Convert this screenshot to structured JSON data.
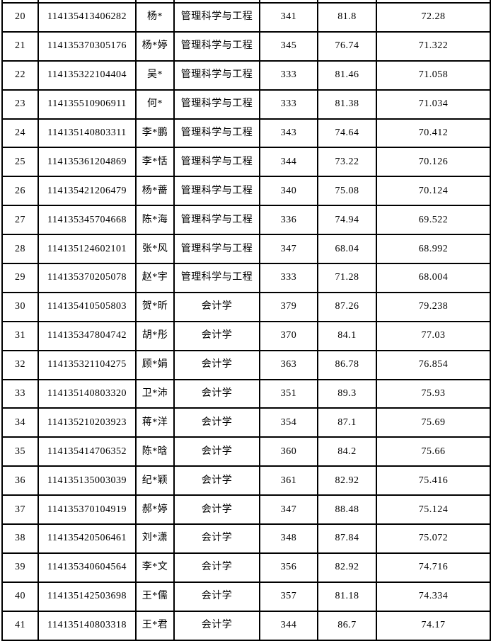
{
  "colors": {
    "background": "#ffffff",
    "border": "#000000",
    "text": "#000000"
  },
  "table": {
    "cell_keys": [
      "no",
      "id",
      "name",
      "major",
      "score1",
      "score2",
      "total"
    ],
    "rows": [
      {
        "no": "20",
        "id": "114135413406282",
        "name": "杨*",
        "major": "管理科学与工程",
        "score1": "341",
        "score2": "81.8",
        "total": "72.28"
      },
      {
        "no": "21",
        "id": "114135370305176",
        "name": "杨*婷",
        "major": "管理科学与工程",
        "score1": "345",
        "score2": "76.74",
        "total": "71.322"
      },
      {
        "no": "22",
        "id": "114135322104404",
        "name": "吴*",
        "major": "管理科学与工程",
        "score1": "333",
        "score2": "81.46",
        "total": "71.058"
      },
      {
        "no": "23",
        "id": "114135510906911",
        "name": "何*",
        "major": "管理科学与工程",
        "score1": "333",
        "score2": "81.38",
        "total": "71.034"
      },
      {
        "no": "24",
        "id": "114135140803311",
        "name": "李*鹏",
        "major": "管理科学与工程",
        "score1": "343",
        "score2": "74.64",
        "total": "70.412"
      },
      {
        "no": "25",
        "id": "114135361204869",
        "name": "李*恬",
        "major": "管理科学与工程",
        "score1": "344",
        "score2": "73.22",
        "total": "70.126"
      },
      {
        "no": "26",
        "id": "114135421206479",
        "name": "杨*蔷",
        "major": "管理科学与工程",
        "score1": "340",
        "score2": "75.08",
        "total": "70.124"
      },
      {
        "no": "27",
        "id": "114135345704668",
        "name": "陈*海",
        "major": "管理科学与工程",
        "score1": "336",
        "score2": "74.94",
        "total": "69.522"
      },
      {
        "no": "28",
        "id": "114135124602101",
        "name": "张*风",
        "major": "管理科学与工程",
        "score1": "347",
        "score2": "68.04",
        "total": "68.992"
      },
      {
        "no": "29",
        "id": "114135370205078",
        "name": "赵*宇",
        "major": "管理科学与工程",
        "score1": "333",
        "score2": "71.28",
        "total": "68.004"
      },
      {
        "no": "30",
        "id": "114135410505803",
        "name": "贺*昕",
        "major": "会计学",
        "score1": "379",
        "score2": "87.26",
        "total": "79.238"
      },
      {
        "no": "31",
        "id": "114135347804742",
        "name": "胡*彤",
        "major": "会计学",
        "score1": "370",
        "score2": "84.1",
        "total": "77.03"
      },
      {
        "no": "32",
        "id": "114135321104275",
        "name": "顾*娟",
        "major": "会计学",
        "score1": "363",
        "score2": "86.78",
        "total": "76.854"
      },
      {
        "no": "33",
        "id": "114135140803320",
        "name": "卫*沛",
        "major": "会计学",
        "score1": "351",
        "score2": "89.3",
        "total": "75.93"
      },
      {
        "no": "34",
        "id": "114135210203923",
        "name": "蒋*洋",
        "major": "会计学",
        "score1": "354",
        "score2": "87.1",
        "total": "75.69"
      },
      {
        "no": "35",
        "id": "114135414706352",
        "name": "陈*晗",
        "major": "会计学",
        "score1": "360",
        "score2": "84.2",
        "total": "75.66"
      },
      {
        "no": "36",
        "id": "114135135003039",
        "name": "纪*颖",
        "major": "会计学",
        "score1": "361",
        "score2": "82.92",
        "total": "75.416"
      },
      {
        "no": "37",
        "id": "114135370104919",
        "name": "郝*婷",
        "major": "会计学",
        "score1": "347",
        "score2": "88.48",
        "total": "75.124"
      },
      {
        "no": "38",
        "id": "114135420506461",
        "name": "刘*潇",
        "major": "会计学",
        "score1": "348",
        "score2": "87.84",
        "total": "75.072"
      },
      {
        "no": "39",
        "id": "114135340604564",
        "name": "李*文",
        "major": "会计学",
        "score1": "356",
        "score2": "82.92",
        "total": "74.716"
      },
      {
        "no": "40",
        "id": "114135142503698",
        "name": "王*儒",
        "major": "会计学",
        "score1": "357",
        "score2": "81.18",
        "total": "74.334"
      },
      {
        "no": "41",
        "id": "114135140803318",
        "name": "王*君",
        "major": "会计学",
        "score1": "344",
        "score2": "86.7",
        "total": "74.17"
      }
    ]
  }
}
